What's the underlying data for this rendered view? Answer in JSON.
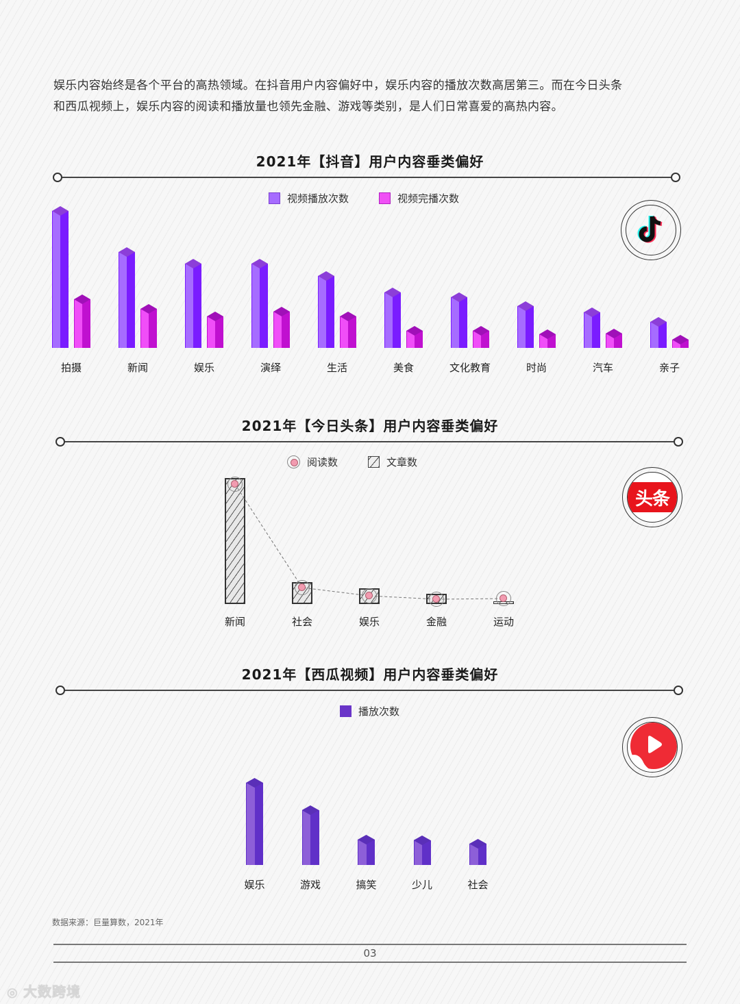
{
  "intro": {
    "line1": "娱乐内容始终是各个平台的高热领域。在抖音用户内容偏好中，娱乐内容的播放次数高居第三。而在今日头条",
    "line2": "和西瓜视频上，娱乐内容的阅读和播放量也领先金融、游戏等类别，是人们日常喜爱的高热内容。"
  },
  "colors": {
    "play_purple": "#8b3dff",
    "complete_magenta": "#e040f0",
    "xigua_purple": "#6a35c8",
    "dot_pink": "#f29bb0",
    "rule": "#444444"
  },
  "chart_data": [
    {
      "id": "douyin",
      "type": "bar",
      "title": "2021年【抖音】用户内容垂类偏好",
      "logo": "tiktok-logo",
      "legend_position": "top-center",
      "categories": [
        "拍摄",
        "新闻",
        "娱乐",
        "演绎",
        "生活",
        "美食",
        "文化教育",
        "时尚",
        "汽车",
        "亲子"
      ],
      "series": [
        {
          "name": "视频播放次数",
          "color": "#8b3dff",
          "values": [
            200,
            140,
            123,
            123,
            105,
            81,
            74,
            61,
            52,
            38
          ]
        },
        {
          "name": "视频完播次数",
          "color": "#e040f0",
          "values": [
            71,
            57,
            46,
            53,
            46,
            25,
            25,
            20,
            21,
            12
          ]
        }
      ],
      "xlabel": "",
      "ylabel": "",
      "grid": false,
      "units": "relative (no axis shown)"
    },
    {
      "id": "toutiao",
      "type": "bar",
      "title": "2021年【今日头条】用户内容垂类偏好",
      "logo": "toutiao-logo",
      "logo_text": "头条",
      "legend_position": "top-center",
      "categories": [
        "新闻",
        "社会",
        "娱乐",
        "金融",
        "运动"
      ],
      "series": [
        {
          "name": "阅读数",
          "kind": "line-dots",
          "values": [
            175,
            24,
            12,
            7,
            8
          ]
        },
        {
          "name": "文章数",
          "kind": "hatched-bar",
          "values": [
            184,
            32,
            23,
            15,
            4
          ]
        }
      ],
      "xlabel": "",
      "ylabel": "",
      "grid": false,
      "units": "relative (no axis shown)"
    },
    {
      "id": "xigua",
      "type": "bar",
      "title": "2021年【西瓜视频】用户内容垂类偏好",
      "logo": "xigua-logo",
      "legend_position": "top-center",
      "categories": [
        "娱乐",
        "游戏",
        "搞笑",
        "少儿",
        "社会"
      ],
      "series": [
        {
          "name": "播放次数",
          "color": "#6a35c8",
          "values": [
            120,
            80,
            37,
            36,
            31
          ]
        }
      ],
      "xlabel": "",
      "ylabel": "",
      "grid": false,
      "units": "relative (no axis shown)"
    }
  ],
  "footer": {
    "source": "数据来源：巨量算数，2021年",
    "page_number": "03",
    "watermark": "大数跨境"
  }
}
